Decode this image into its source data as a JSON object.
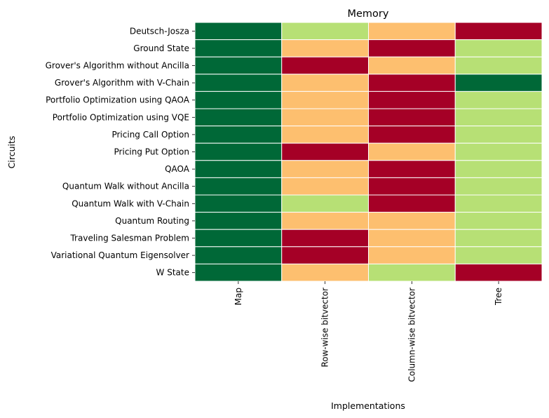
{
  "chart_data": {
    "type": "heatmap",
    "title": "Memory",
    "xlabel": "Implementations",
    "ylabel": "Circuits",
    "x_categories": [
      "Map",
      "Row-wise bitvector",
      "Column-wise bitvector",
      "Tree"
    ],
    "y_categories": [
      "Deutsch-Josza",
      "Ground State",
      "Grover's Algorithm without Ancilla",
      "Grover's Algorithm with V-Chain",
      "Portfolio Optimization using QAOA",
      "Portfolio Optimization using VQE",
      "Pricing Call Option",
      "Pricing Put Option",
      "QAOA",
      "Quantum Walk without Ancilla",
      "Quantum Walk with V-Chain",
      "Quantum Routing",
      "Traveling Salesman Problem",
      "Variational Quantum Eigensolver",
      "W State"
    ],
    "values": [
      [
        1,
        2,
        3,
        4
      ],
      [
        1,
        3,
        4,
        2
      ],
      [
        1,
        4,
        3,
        2
      ],
      [
        1,
        3,
        4,
        1
      ],
      [
        1,
        3,
        4,
        2
      ],
      [
        1,
        3,
        4,
        2
      ],
      [
        1,
        3,
        4,
        2
      ],
      [
        1,
        4,
        3,
        2
      ],
      [
        1,
        3,
        4,
        2
      ],
      [
        1,
        3,
        4,
        2
      ],
      [
        1,
        2,
        4,
        2
      ],
      [
        1,
        3,
        3,
        2
      ],
      [
        1,
        4,
        3,
        2
      ],
      [
        1,
        4,
        3,
        2
      ],
      [
        1,
        3,
        2,
        4
      ]
    ],
    "colormap": "RdYlGn_r",
    "value_colors": {
      "1": "#006837",
      "2": "#b7e075",
      "3": "#fdbf6f",
      "4": "#a50026"
    },
    "colorbar": false,
    "grid": false
  }
}
